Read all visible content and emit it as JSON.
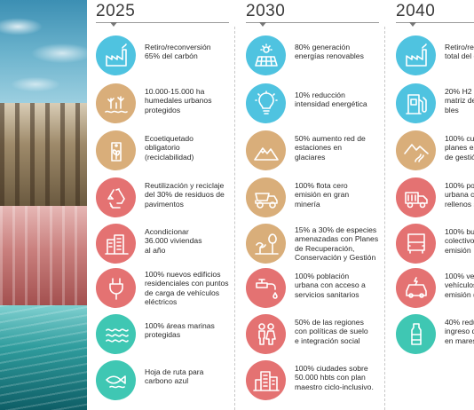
{
  "years": [
    "2025",
    "2030",
    "2040"
  ],
  "colors": {
    "blue": "#4fc3e0",
    "tan": "#d9ae7a",
    "red": "#e47272",
    "teal": "#3fc7b3"
  },
  "columns": [
    {
      "items": [
        {
          "icon": "factory-icon",
          "color": "blue",
          "lines": [
            "Retiro/reconversión",
            "65% del carbón"
          ]
        },
        {
          "icon": "wetland-icon",
          "color": "tan",
          "lines": [
            "10.000-15.000 ha",
            "humedales urbanos",
            "protegidos"
          ]
        },
        {
          "icon": "eco-label-icon",
          "color": "tan",
          "lines": [
            "Ecoetiquetado",
            "obligatorio",
            "(reciclabilidad)"
          ]
        },
        {
          "icon": "recycle-icon",
          "color": "red",
          "lines": [
            "Reutilización y reciclaje",
            "del 30% de residuos de",
            "pavimentos"
          ]
        },
        {
          "icon": "buildings-icon",
          "color": "red",
          "lines": [
            "Acondicionar",
            "36.000 viviendas",
            "al año"
          ]
        },
        {
          "icon": "plug-icon",
          "color": "red",
          "lines": [
            "100% nuevos edificios",
            "residenciales con puntos",
            "de carga de vehículos",
            "eléctricos"
          ]
        },
        {
          "icon": "waves-icon",
          "color": "teal",
          "lines": [
            "100% áreas marinas",
            "protegidas"
          ]
        },
        {
          "icon": "fish-icon",
          "color": "teal",
          "lines": [
            "Hoja de ruta para",
            "carbono azul"
          ]
        }
      ]
    },
    {
      "items": [
        {
          "icon": "solar-panel-icon",
          "color": "blue",
          "lines": [
            "80% generación",
            "energías renovables"
          ]
        },
        {
          "icon": "lightbulb-icon",
          "color": "blue",
          "lines": [
            "10% reducción",
            "intensidad energética"
          ]
        },
        {
          "icon": "mountains-icon",
          "color": "tan",
          "lines": [
            "50% aumento red de",
            "estaciones en",
            "glaciares"
          ]
        },
        {
          "icon": "mining-truck-icon",
          "color": "tan",
          "lines": [
            "100% flota cero",
            "emisión en gran",
            "minería"
          ]
        },
        {
          "icon": "bird-tree-icon",
          "color": "tan",
          "lines": [
            "15% a 30% de especies",
            "amenazadas con Planes",
            "de Recuperación,",
            "Conservación y Gestión"
          ]
        },
        {
          "icon": "water-tap-icon",
          "color": "red",
          "lines": [
            "100% población",
            "urbana con acceso a",
            "servicios sanitarios"
          ]
        },
        {
          "icon": "people-icon",
          "color": "red",
          "lines": [
            "50% de las regiones",
            "con políticas de suelo",
            "e integración social"
          ]
        },
        {
          "icon": "city-icon",
          "color": "red",
          "lines": [
            "100% ciudades sobre",
            "50.000 hbts con plan",
            "maestro ciclo-inclusivo."
          ]
        }
      ]
    },
    {
      "items": [
        {
          "icon": "factory-icon",
          "color": "blue",
          "lines": [
            "Retiro/re",
            "total del c"
          ]
        },
        {
          "icon": "hydrogen-pump-icon",
          "color": "blue",
          "lines": [
            "20% H2 V",
            "matriz de",
            "bles"
          ]
        },
        {
          "icon": "road-mountains-icon",
          "color": "tan",
          "lines": [
            "100% cue",
            "planes es",
            "de gestió"
          ]
        },
        {
          "icon": "garbage-truck-icon",
          "color": "red",
          "lines": [
            "100% pob",
            "urbana co",
            "rellenos s"
          ]
        },
        {
          "icon": "bus-icon",
          "color": "red",
          "lines": [
            "100% bus",
            "colectivo",
            "emisión"
          ]
        },
        {
          "icon": "car-icon",
          "color": "red",
          "lines": [
            "100% ven",
            "vehículos",
            "emisión ("
          ]
        },
        {
          "icon": "bottle-icon",
          "color": "teal",
          "lines": [
            "40% redu",
            "ingreso d",
            "en mares"
          ]
        }
      ]
    }
  ]
}
